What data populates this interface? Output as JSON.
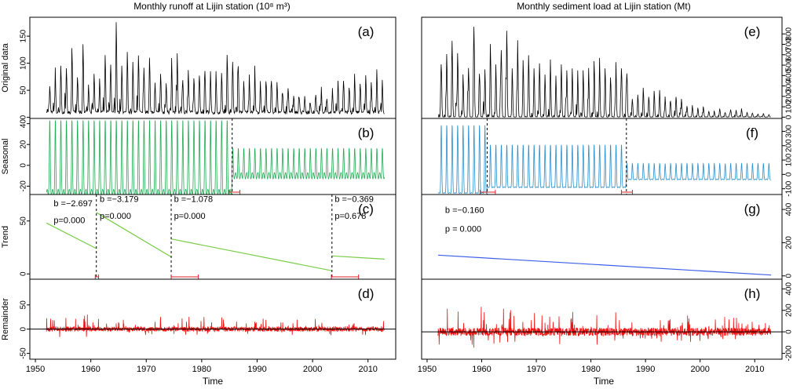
{
  "figure": {
    "x_axis_label": "Time",
    "x_ticks": [
      1950,
      1960,
      1970,
      1980,
      1990,
      2000,
      2010
    ],
    "x_range": [
      1949,
      2015
    ]
  },
  "chart_data": [
    {
      "type": "line",
      "title": "Monthly runoff at Lijin station",
      "title_unit": "(10⁸ m³)",
      "x_range": [
        1952,
        2013
      ],
      "panels": [
        {
          "label": "(a)",
          "ylabel": "Original data",
          "ylim": [
            -2,
            185
          ],
          "yticks": [
            0,
            50,
            100,
            150
          ],
          "color": "#000000",
          "series": {
            "name": "Original data",
            "kind": "seasonal-spiky",
            "start_x": 1952,
            "end_x": 2013,
            "points_per_year": 12,
            "base": 10,
            "annual_peaks": [
              60,
              80,
              100,
              95,
              125,
              75,
              140,
              60,
              80,
              72,
              120,
              100,
              180,
              98,
              125,
              100,
              118,
              92,
              115,
              65,
              86,
              65,
              92,
              102,
              70,
              88,
              72,
              82,
              88,
              86,
              74,
              84,
              120,
              108,
              100,
              68,
              72,
              78,
              62,
              72,
              70,
              68,
              48,
              58,
              42,
              40,
              38,
              30,
              34,
              45,
              35,
              50,
              68,
              70,
              58,
              70,
              66,
              72,
              66,
              78,
              62
            ]
          }
        },
        {
          "label": "(b)",
          "ylabel": "Seasonal",
          "ylim": [
            -28,
            45
          ],
          "yticks": [
            -20,
            0,
            20,
            40
          ],
          "color": "#22aa55",
          "series": {
            "name": "Seasonal",
            "kind": "seasonal",
            "segments": [
              {
                "from": 1952,
                "to": 1985.5,
                "amplitude": 42,
                "min": -26
              },
              {
                "from": 1985.5,
                "to": 2013,
                "amplitude": 14,
                "min": -10
              }
            ]
          },
          "breakpoints": [
            1985.5
          ],
          "confidence_intervals": [
            [
              1984.9,
              1986.9
            ]
          ]
        },
        {
          "label": "(c)",
          "ylabel": "Trend",
          "ylim": [
            -5,
            75
          ],
          "yticks": [
            0,
            50
          ],
          "color": "#77cc44",
          "series": {
            "name": "Trend",
            "kind": "piecewise-linear",
            "segments": [
              {
                "from": 1952,
                "to": 1961,
                "y0": 48,
                "y1": 24
              },
              {
                "from": 1961,
                "to": 1974.5,
                "y0": 58,
                "y1": 16
              },
              {
                "from": 1974.5,
                "to": 2003.5,
                "y0": 33,
                "y1": 3
              },
              {
                "from": 2003.5,
                "to": 2013,
                "y0": 17,
                "y1": 14
              }
            ]
          },
          "breakpoints": [
            1961,
            1974.5,
            2003.5
          ],
          "confidence_intervals": [
            [
              1960.8,
              1961.4
            ],
            [
              1974.5,
              1979.4
            ],
            [
              2003.4,
              2008.3
            ]
          ],
          "annotations": [
            {
              "b": "b =−2.697",
              "p": "p=0.000",
              "x": 1953.3,
              "yb": 64,
              "yp": 48
            },
            {
              "b": "b =−3.179",
              "p": "p=0.000",
              "x": 1961.6,
              "yb": 68,
              "yp": 52
            },
            {
              "b": "b =−1.078",
              "p": "p=0.000",
              "x": 1975.0,
              "yb": 68,
              "yp": 52
            },
            {
              "b": "b =−0.369",
              "p": "p=0.678",
              "x": 2004.0,
              "yb": 68,
              "yp": 52
            }
          ]
        },
        {
          "label": "(d)",
          "ylabel": "Remainder",
          "ylim": [
            -62,
            103
          ],
          "yticks": [
            -50,
            0,
            50
          ],
          "color": "#ee1111",
          "series": {
            "name": "Remainder",
            "kind": "noise",
            "amplitude": 40,
            "seed": 11
          }
        }
      ]
    },
    {
      "type": "line",
      "title": "Monthly sediment load at Lijin station (Mt)",
      "title_unit": "",
      "x_range": [
        1952,
        2013
      ],
      "panels": [
        {
          "label": "(e)",
          "ylabel": "",
          "ylim": [
            -12,
            960
          ],
          "yticks": [
            0,
            100,
            200,
            300,
            400,
            500,
            600,
            700,
            800
          ],
          "color": "#000000",
          "series": {
            "name": "Original data",
            "kind": "seasonal-spiky",
            "start_x": 1952,
            "end_x": 2013,
            "points_per_year": 12,
            "base": 3,
            "annual_peaks": [
              520,
              620,
              700,
              630,
              420,
              480,
              890,
              420,
              470,
              720,
              520,
              660,
              850,
              480,
              640,
              560,
              610,
              480,
              530,
              420,
              460,
              390,
              520,
              460,
              480,
              380,
              460,
              420,
              520,
              490,
              480,
              390,
              500,
              480,
              430,
              180,
              220,
              290,
              200,
              240,
              220,
              180,
              160,
              200,
              180,
              110,
              100,
              90,
              105,
              60,
              55,
              85,
              45,
              75,
              70,
              75,
              45,
              40,
              30,
              35,
              25
            ]
          }
        },
        {
          "label": "(f)",
          "ylabel": "",
          "ylim": [
            -140,
            390
          ],
          "yticks": [
            -100,
            0,
            100,
            200,
            300
          ],
          "color": "#2b8fce",
          "series": {
            "name": "Seasonal",
            "kind": "seasonal",
            "segments": [
              {
                "from": 1952,
                "to": 1961,
                "amplitude": 350,
                "min": -130
              },
              {
                "from": 1961,
                "to": 1986.5,
                "amplitude": 210,
                "min": -90
              },
              {
                "from": 1986.5,
                "to": 2013,
                "amplitude": 75,
                "min": -35
              }
            ]
          },
          "breakpoints": [
            1961,
            1986.5
          ],
          "confidence_intervals": [
            [
              1959.7,
              1962.5
            ],
            [
              1985.6,
              1987.6
            ]
          ]
        },
        {
          "label": "(g)",
          "ylabel": "",
          "ylim": [
            -20,
            490
          ],
          "yticks": [
            0,
            200,
            400
          ],
          "color": "#3b5ee8",
          "series": {
            "name": "Trend",
            "kind": "piecewise-linear",
            "segments": [
              {
                "from": 1952,
                "to": 2013,
                "y0": 125,
                "y1": 5
              }
            ]
          },
          "breakpoints": [],
          "confidence_intervals": [],
          "annotations": [
            {
              "b": "b =−0.160",
              "p": "p = 0.000",
              "x": 1953.3,
              "yb": 380,
              "yp": 265
            }
          ]
        },
        {
          "label": "(h)",
          "ylabel": "",
          "ylim": [
            -255,
            490
          ],
          "yticks": [
            -200,
            0,
            200,
            400
          ],
          "color": "#ee1111",
          "series": {
            "name": "Remainder",
            "kind": "noise",
            "amplitude": 300,
            "seed": 29
          }
        }
      ]
    }
  ]
}
